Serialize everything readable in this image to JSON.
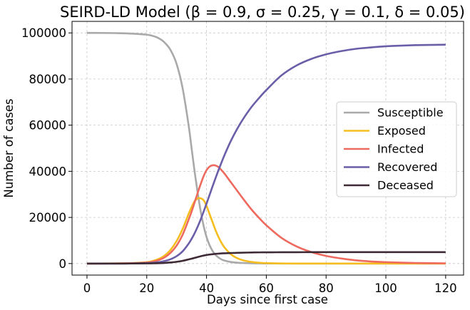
{
  "chart_data": {
    "type": "line",
    "title": "SEIRD-LD Model (β = 0.9, σ = 0.25, γ = 0.1, δ = 0.05)",
    "xlabel": "Days since first case",
    "ylabel": "Number of cases",
    "xlim": [
      -5,
      126
    ],
    "ylim": [
      -5000,
      105000
    ],
    "xticks": [
      0,
      20,
      40,
      60,
      80,
      100,
      120
    ],
    "yticks": [
      0,
      20000,
      40000,
      60000,
      80000,
      100000
    ],
    "grid": true,
    "legend_position": "right",
    "x": [
      0,
      5,
      10,
      15,
      20,
      22,
      24,
      26,
      28,
      30,
      32,
      34,
      35,
      36,
      37,
      38,
      39,
      40,
      41,
      42,
      43,
      44,
      45,
      46,
      48,
      50,
      52,
      55,
      58,
      60,
      65,
      70,
      75,
      80,
      85,
      90,
      95,
      100,
      110,
      120
    ],
    "series": [
      {
        "name": "Susceptible",
        "color": "#a9a9a9",
        "values": [
          100000,
          99980,
          99900,
          99700,
          99250,
          98700,
          97700,
          95800,
          92500,
          86500,
          76000,
          60000,
          50000,
          40000,
          31000,
          23000,
          16500,
          11500,
          8000,
          5500,
          3800,
          2600,
          1800,
          1300,
          700,
          400,
          250,
          120,
          60,
          40,
          15,
          8,
          4,
          2,
          1,
          1,
          0,
          0,
          0,
          0
        ]
      },
      {
        "name": "Exposed",
        "color": "#f5bd1f",
        "values": [
          0,
          20,
          60,
          200,
          600,
          1100,
          2000,
          3500,
          6000,
          9800,
          15000,
          21500,
          24500,
          27000,
          28200,
          28300,
          27500,
          25000,
          21500,
          18000,
          14500,
          11500,
          9000,
          7000,
          4200,
          2500,
          1500,
          700,
          300,
          180,
          50,
          15,
          5,
          2,
          1,
          0,
          0,
          0,
          0,
          0
        ]
      },
      {
        "name": "Infected",
        "color": "#ee6a5f",
        "values": [
          0,
          10,
          40,
          150,
          450,
          800,
          1500,
          2700,
          4700,
          7800,
          12500,
          19000,
          22500,
          26500,
          30500,
          34300,
          37800,
          40500,
          42000,
          42600,
          42500,
          41800,
          40500,
          39000,
          35500,
          32000,
          28500,
          23500,
          19200,
          16600,
          11200,
          7500,
          5000,
          3300,
          2200,
          1400,
          900,
          600,
          250,
          100
        ]
      },
      {
        "name": "Recovered",
        "color": "#6a5ea8",
        "values": [
          0,
          0,
          0,
          50,
          200,
          350,
          600,
          1100,
          1900,
          3200,
          5300,
          8600,
          10700,
          13100,
          15900,
          19000,
          22400,
          26000,
          29700,
          33400,
          37000,
          40500,
          43800,
          47000,
          52800,
          57800,
          62200,
          67800,
          72400,
          75200,
          81500,
          85800,
          88700,
          90700,
          92100,
          93100,
          93700,
          94200,
          94700,
          94900
        ]
      },
      {
        "name": "Deceased",
        "color": "#3e2a35",
        "values": [
          0,
          0,
          0,
          20,
          60,
          100,
          170,
          280,
          460,
          750,
          1180,
          1800,
          2100,
          2450,
          2800,
          3150,
          3450,
          3700,
          3900,
          4050,
          4200,
          4300,
          4400,
          4450,
          4550,
          4650,
          4700,
          4800,
          4850,
          4870,
          4900,
          4920,
          4930,
          4940,
          4945,
          4950,
          4950,
          4950,
          4950,
          4950
        ]
      }
    ]
  }
}
